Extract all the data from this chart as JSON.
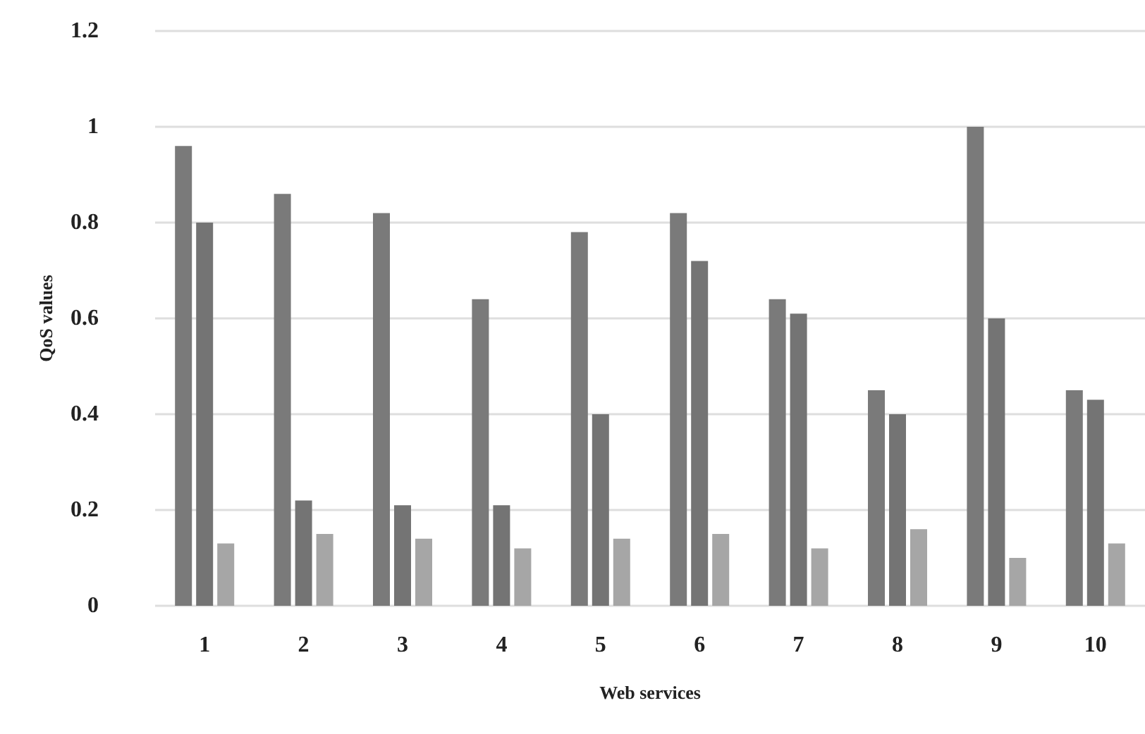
{
  "chart_data": {
    "type": "bar",
    "xlabel": "Web services",
    "ylabel": "QoS values",
    "categories": [
      "1",
      "2",
      "3",
      "4",
      "5",
      "6",
      "7",
      "8",
      "9",
      "10"
    ],
    "series": [
      {
        "color": "#7a7a7a",
        "values": [
          0.96,
          0.86,
          0.82,
          0.64,
          0.78,
          0.82,
          0.64,
          0.45,
          1.0,
          0.45
        ]
      },
      {
        "color": "#747474",
        "values": [
          0.8,
          0.22,
          0.21,
          0.21,
          0.4,
          0.72,
          0.61,
          0.4,
          0.6,
          0.43
        ]
      },
      {
        "color": "#a6a6a6",
        "values": [
          0.13,
          0.15,
          0.14,
          0.12,
          0.14,
          0.15,
          0.12,
          0.16,
          0.1,
          0.13
        ]
      }
    ],
    "ylim": [
      0,
      1.2
    ],
    "yticks": [
      0,
      0.2,
      0.4,
      0.6,
      0.8,
      1,
      1.2
    ],
    "grid": "y"
  }
}
